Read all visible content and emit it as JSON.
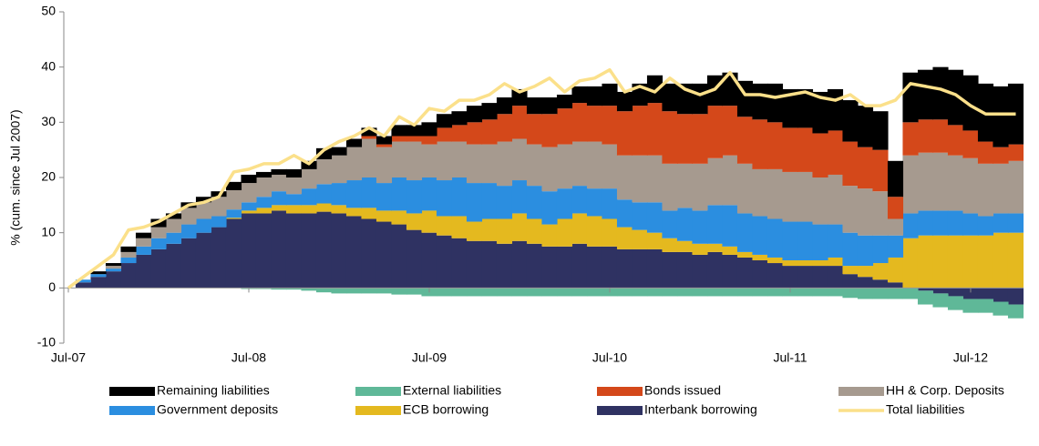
{
  "chart_data": {
    "type": "bar",
    "stacked": true,
    "y_label": "% (cum. since Jul 2007)",
    "ylim": [
      -10,
      50
    ],
    "yticks": [
      -10,
      0,
      10,
      20,
      30,
      40,
      50
    ],
    "categories": [
      "Jul-07",
      null,
      null,
      null,
      null,
      null,
      null,
      null,
      null,
      null,
      null,
      null,
      "Jul-08",
      null,
      null,
      null,
      null,
      null,
      null,
      null,
      null,
      null,
      null,
      null,
      "Jul-09",
      null,
      null,
      null,
      null,
      null,
      null,
      null,
      null,
      null,
      null,
      null,
      "Jul-10",
      null,
      null,
      null,
      null,
      null,
      null,
      null,
      null,
      null,
      null,
      null,
      "Jul-11",
      null,
      null,
      null,
      null,
      null,
      null,
      null,
      null,
      null,
      null,
      null,
      "Jul-12",
      null,
      null,
      null
    ],
    "series": [
      {
        "name": "Remaining liabilities",
        "color": "#000000",
        "values": [
          0,
          0,
          0.5,
          0.5,
          1,
          1,
          1.5,
          1,
          1,
          1,
          1,
          1.5,
          1.5,
          1,
          1,
          1.5,
          1.5,
          2,
          1.5,
          1.5,
          1.5,
          1.5,
          2,
          2,
          2.5,
          2.5,
          2.5,
          3,
          3,
          3,
          3,
          3,
          3,
          2.5,
          3,
          3.5,
          4,
          3.5,
          4,
          5,
          5,
          5.5,
          5.5,
          5.5,
          6,
          6.5,
          6.5,
          7,
          7,
          7,
          7.5,
          7.5,
          7.5,
          7.5,
          7,
          6.5,
          9,
          9,
          9.5,
          10,
          10,
          10.5,
          11,
          11
        ]
      },
      {
        "name": "External liabilities",
        "color": "#5fb898",
        "values": [
          0,
          0,
          0,
          0,
          0,
          0,
          0,
          0,
          0,
          0,
          0,
          0,
          -0.2,
          -0.2,
          -0.3,
          -0.3,
          -0.5,
          -0.8,
          -1,
          -1,
          -1,
          -1,
          -1.2,
          -1.2,
          -1.5,
          -1.5,
          -1.5,
          -1.5,
          -1.5,
          -1.5,
          -1.5,
          -1.5,
          -1.5,
          -1.5,
          -1.5,
          -1.5,
          -1.5,
          -1.5,
          -1.5,
          -1.5,
          -1.5,
          -1.5,
          -1.5,
          -1.5,
          -1.5,
          -1.5,
          -1.5,
          -1.5,
          -1.5,
          -1.5,
          -1.5,
          -1.5,
          -1.8,
          -2,
          -2,
          -2,
          -2,
          -2.5,
          -2.5,
          -2.5,
          -2.5,
          -2.5,
          -2.5,
          -2.5
        ]
      },
      {
        "name": "Bonds issued",
        "color": "#d4481a",
        "values": [
          0,
          0,
          0,
          0,
          0,
          0,
          0,
          0,
          0,
          0,
          0,
          0,
          0,
          0,
          0,
          0,
          0,
          0,
          0,
          0,
          0.5,
          0.5,
          1,
          1,
          1.5,
          2.5,
          3,
          4,
          4.5,
          5,
          6,
          5.5,
          6,
          6.5,
          7,
          6.5,
          7,
          8,
          9,
          9.5,
          9.5,
          9,
          9,
          9.5,
          9,
          8.5,
          9,
          8.5,
          8,
          8,
          8,
          8,
          8,
          7.5,
          7.5,
          4,
          6,
          6,
          6,
          5.5,
          5,
          4,
          3,
          3
        ]
      },
      {
        "name": "HH & Corp. Deposits",
        "color": "#a69a8f",
        "values": [
          0,
          0,
          0,
          0.5,
          1,
          1.5,
          2,
          2.5,
          3,
          3,
          3.5,
          3.5,
          3.5,
          3.5,
          3,
          3,
          3.5,
          4.5,
          5,
          6,
          7,
          6.5,
          6.5,
          7,
          6,
          7,
          6.5,
          7,
          7,
          8,
          7.5,
          7.5,
          8,
          8,
          8,
          8.5,
          8,
          8,
          8.5,
          8.5,
          8.5,
          8,
          8.5,
          8.5,
          9,
          9,
          8.5,
          9,
          9,
          9,
          8.5,
          9,
          8.5,
          8.5,
          8,
          3,
          10.5,
          10.5,
          10.5,
          10,
          10,
          9.5,
          9,
          9.5
        ]
      },
      {
        "name": "Government deposits",
        "color": "#2b8ee0",
        "values": [
          0,
          0.5,
          0.5,
          0.5,
          1,
          1.5,
          2,
          2,
          2.5,
          2.5,
          2,
          1.5,
          1.5,
          2,
          2.5,
          2,
          3,
          3.5,
          4,
          5,
          5.5,
          5,
          6,
          6,
          6,
          6.5,
          7,
          7,
          6.5,
          6,
          6,
          6,
          6,
          5.5,
          5,
          5,
          5.5,
          5,
          5,
          5.5,
          5,
          6,
          6,
          7,
          7.5,
          7,
          7,
          7,
          7,
          7,
          6.5,
          6,
          6,
          5.5,
          5,
          4,
          4.5,
          4.5,
          4.5,
          4.5,
          4,
          3.5,
          3.5,
          3.5
        ]
      },
      {
        "name": "ECB borrowing",
        "color": "#e4b91f",
        "values": [
          0,
          0,
          0,
          0,
          0,
          0,
          0,
          0,
          0,
          0,
          0,
          0.2,
          0.5,
          1,
          1,
          1.5,
          1.5,
          1.5,
          1.5,
          1.5,
          2,
          2,
          2.5,
          3,
          4,
          3.5,
          4,
          3.5,
          4,
          4.5,
          5,
          4.5,
          4,
          5,
          5.5,
          5.5,
          5,
          4,
          3.5,
          3,
          2.5,
          2,
          2,
          1.5,
          1.5,
          1,
          1,
          1,
          1,
          1,
          1,
          1.5,
          1.5,
          2,
          3,
          4.5,
          9,
          9.5,
          9.5,
          9.5,
          9.5,
          9.5,
          10,
          10
        ]
      },
      {
        "name": "Interbank borrowing",
        "color": "#2f3262",
        "values": [
          0,
          1,
          2,
          3,
          4.5,
          6,
          7,
          8,
          9,
          10,
          11,
          12.5,
          13.5,
          13.5,
          14,
          13.5,
          13.5,
          13.8,
          13.5,
          13,
          12.5,
          12,
          11.5,
          10.5,
          10,
          9.5,
          9,
          8.5,
          8.5,
          8,
          8.5,
          8,
          7.5,
          7.5,
          8,
          7.5,
          7.5,
          7,
          7,
          7,
          6.5,
          6.5,
          6,
          6.5,
          6,
          5.5,
          5,
          4.5,
          4,
          4,
          4,
          4,
          2.5,
          2,
          1.5,
          1,
          0,
          -0.5,
          -1,
          -1.5,
          -2,
          -2,
          -2.5,
          -3
        ]
      },
      {
        "name": "Total liabilities",
        "type": "line",
        "color": "#fbe08a",
        "values": [
          0,
          2,
          4,
          6,
          10.5,
          11,
          12,
          13.5,
          15,
          15.5,
          16.5,
          21,
          21.5,
          22.5,
          22.5,
          24,
          22.5,
          25,
          26.5,
          27.5,
          29,
          27.5,
          31,
          29.5,
          32.5,
          32,
          34,
          34,
          35,
          37,
          35.5,
          36.5,
          38,
          35.5,
          37.5,
          38,
          39.5,
          35.5,
          36.5,
          35.5,
          38,
          36,
          35,
          36,
          39,
          35,
          35,
          34.5,
          35,
          35.5,
          34.5,
          34,
          35,
          33,
          33,
          34,
          37,
          36.5,
          36,
          35,
          33,
          31.5,
          31.5,
          31.5
        ]
      }
    ]
  }
}
